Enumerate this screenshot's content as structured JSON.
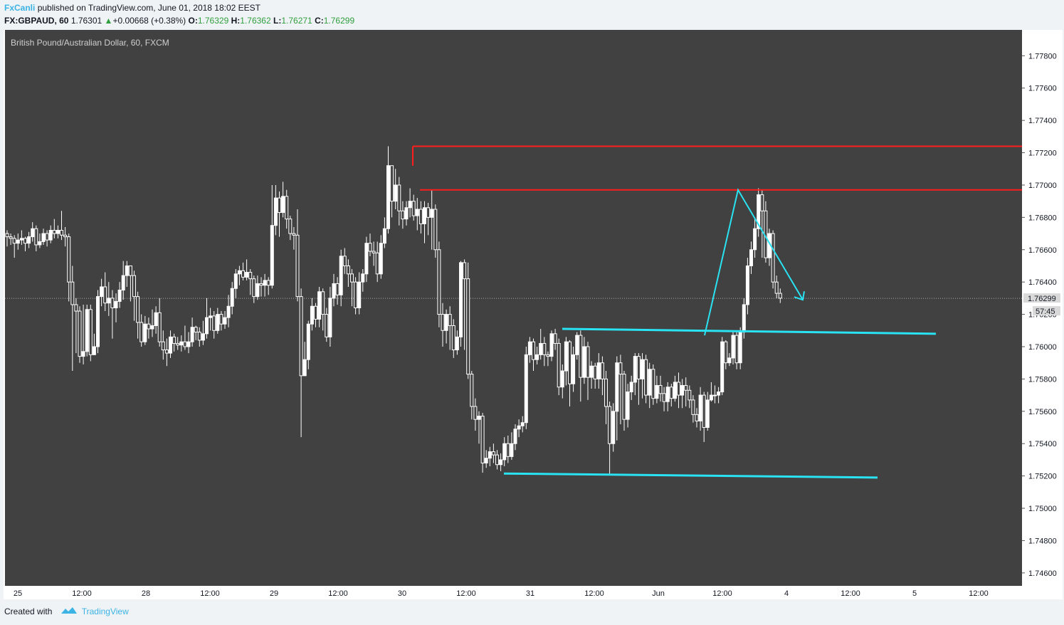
{
  "header": {
    "author": "FxCanli",
    "published": "published on TradingView.com, June 01, 2018 18:02 EEST",
    "symbol": "FX:GBPAUD, 60",
    "last": "1.76301",
    "change_arrow": "▲",
    "change": "+0.00668 (+0.38%)",
    "o_label": "O:",
    "o": "1.76329",
    "h_label": "H:",
    "h": "1.76362",
    "l_label": "L:",
    "l": "1.76271",
    "c_label": "C:",
    "c": "1.76299"
  },
  "footer": {
    "created_with": "Created with",
    "brand": "TradingView"
  },
  "colors": {
    "plot_bg": "#414141",
    "candle": "#ffffff",
    "resistance": "#ff1e1e",
    "trendline": "#29e2f2",
    "price_tag_bg": "#d9d9d9"
  },
  "chart_data": {
    "type": "candlestick",
    "title": "British Pound/Australian Dollar, 60, FXCM",
    "y_range": [
      1.7452,
      1.7796
    ],
    "y_ticks": [
      "1.77800",
      "1.77600",
      "1.77400",
      "1.77200",
      "1.77000",
      "1.76800",
      "1.76600",
      "1.76400",
      "1.76200",
      "1.76000",
      "1.75800",
      "1.75600",
      "1.75400",
      "1.75200",
      "1.75000",
      "1.74800",
      "1.74600"
    ],
    "x_labels": [
      "25",
      "12:00",
      "28",
      "12:00",
      "29",
      "12:00",
      "30",
      "12:00",
      "31",
      "12:00",
      "Jun",
      "12:00",
      "4",
      "12:00",
      "5",
      "12:00"
    ],
    "last_price": "1.76299",
    "countdown": "57:45",
    "candles_bar_span": [
      0,
      234
    ],
    "candles": [
      [
        1.767,
        1.7668,
        1.7672,
        1.7662
      ],
      [
        1.7668,
        1.7667,
        1.767,
        1.7663
      ],
      [
        1.7667,
        1.7664,
        1.7669,
        1.7655
      ],
      [
        1.7664,
        1.7666,
        1.767,
        1.766
      ],
      [
        1.7666,
        1.7667,
        1.7672,
        1.7663
      ],
      [
        1.7667,
        1.7664,
        1.7668,
        1.7659
      ],
      [
        1.7664,
        1.7668,
        1.7671,
        1.7661
      ],
      [
        1.7668,
        1.7673,
        1.7677,
        1.7665
      ],
      [
        1.7673,
        1.7663,
        1.7675,
        1.7659
      ],
      [
        1.7663,
        1.7665,
        1.767,
        1.7661
      ],
      [
        1.7665,
        1.767,
        1.7673,
        1.7663
      ],
      [
        1.767,
        1.7666,
        1.7672,
        1.7662
      ],
      [
        1.7666,
        1.7672,
        1.7675,
        1.7664
      ],
      [
        1.7672,
        1.767,
        1.7679,
        1.7667
      ],
      [
        1.767,
        1.7672,
        1.7675,
        1.7667
      ],
      [
        1.7672,
        1.7669,
        1.7684,
        1.7666
      ],
      [
        1.7669,
        1.7668,
        1.7674,
        1.7662
      ],
      [
        1.7668,
        1.764,
        1.767,
        1.7628
      ],
      [
        1.764,
        1.7626,
        1.765,
        1.7585
      ],
      [
        1.7626,
        1.7622,
        1.763,
        1.7596
      ],
      [
        1.7622,
        1.7594,
        1.7625,
        1.759
      ],
      [
        1.7594,
        1.7597,
        1.7626,
        1.7589
      ],
      [
        1.7597,
        1.7623,
        1.7626,
        1.7594
      ],
      [
        1.7623,
        1.7595,
        1.7626,
        1.7591
      ],
      [
        1.7595,
        1.76,
        1.7608,
        1.7595
      ],
      [
        1.76,
        1.7631,
        1.7635,
        1.7596
      ],
      [
        1.7631,
        1.7637,
        1.7642,
        1.7625
      ],
      [
        1.7637,
        1.7627,
        1.7646,
        1.7622
      ],
      [
        1.7627,
        1.763,
        1.764,
        1.7619
      ],
      [
        1.763,
        1.7624,
        1.7635,
        1.7605
      ],
      [
        1.7624,
        1.7628,
        1.7633,
        1.7615
      ],
      [
        1.7628,
        1.7635,
        1.764,
        1.7624
      ],
      [
        1.7635,
        1.7644,
        1.7653,
        1.7629
      ],
      [
        1.7644,
        1.765,
        1.7653,
        1.7637
      ],
      [
        1.765,
        1.7644,
        1.765,
        1.7628
      ],
      [
        1.7644,
        1.7631,
        1.7647,
        1.7616
      ],
      [
        1.7631,
        1.7615,
        1.7634,
        1.7605
      ],
      [
        1.7615,
        1.7603,
        1.762,
        1.76
      ],
      [
        1.7603,
        1.7614,
        1.7619,
        1.7601
      ],
      [
        1.7614,
        1.7611,
        1.7618,
        1.7605
      ],
      [
        1.7611,
        1.7613,
        1.7623,
        1.7606
      ],
      [
        1.7613,
        1.7621,
        1.7625,
        1.7608
      ],
      [
        1.7621,
        1.7603,
        1.763,
        1.76
      ],
      [
        1.7603,
        1.7598,
        1.761,
        1.7592
      ],
      [
        1.7598,
        1.7596,
        1.7605,
        1.7588
      ],
      [
        1.7596,
        1.7606,
        1.761,
        1.7593
      ],
      [
        1.7606,
        1.7602,
        1.7608,
        1.7597
      ],
      [
        1.7602,
        1.7601,
        1.7606,
        1.7598
      ],
      [
        1.7601,
        1.7603,
        1.7607,
        1.7597
      ],
      [
        1.7603,
        1.76,
        1.7613,
        1.7598
      ],
      [
        1.76,
        1.7603,
        1.7609,
        1.7596
      ],
      [
        1.7603,
        1.7612,
        1.7618,
        1.76
      ],
      [
        1.7612,
        1.7609,
        1.7613,
        1.7604
      ],
      [
        1.7609,
        1.7604,
        1.7612,
        1.76
      ],
      [
        1.7604,
        1.7608,
        1.7616,
        1.7601
      ],
      [
        1.7608,
        1.7618,
        1.763,
        1.7605
      ],
      [
        1.7618,
        1.7619,
        1.7624,
        1.761
      ],
      [
        1.7619,
        1.761,
        1.7622,
        1.7605
      ],
      [
        1.761,
        1.762,
        1.7624,
        1.7608
      ],
      [
        1.762,
        1.7614,
        1.7622,
        1.761
      ],
      [
        1.7614,
        1.7618,
        1.7622,
        1.7611
      ],
      [
        1.7618,
        1.7625,
        1.7632,
        1.7612
      ],
      [
        1.7625,
        1.7636,
        1.764,
        1.762
      ],
      [
        1.7636,
        1.7645,
        1.7648,
        1.763
      ],
      [
        1.7645,
        1.7647,
        1.765,
        1.7638
      ],
      [
        1.7647,
        1.7643,
        1.7652,
        1.7641
      ],
      [
        1.7643,
        1.7646,
        1.7654,
        1.7641
      ],
      [
        1.7646,
        1.7642,
        1.7648,
        1.7632
      ],
      [
        1.7642,
        1.7631,
        1.7644,
        1.7627
      ],
      [
        1.7631,
        1.7639,
        1.7644,
        1.7629
      ],
      [
        1.7639,
        1.7638,
        1.7643,
        1.7631
      ],
      [
        1.7638,
        1.7641,
        1.7645,
        1.7631
      ],
      [
        1.7641,
        1.7638,
        1.7643,
        1.7632
      ],
      [
        1.7638,
        1.7675,
        1.77,
        1.7636
      ],
      [
        1.7675,
        1.7692,
        1.77,
        1.7669
      ],
      [
        1.7692,
        1.7683,
        1.7696,
        1.7668
      ],
      [
        1.7683,
        1.7693,
        1.7702,
        1.768
      ],
      [
        1.7693,
        1.7679,
        1.7697,
        1.7673
      ],
      [
        1.7679,
        1.767,
        1.7681,
        1.7666
      ],
      [
        1.767,
        1.7669,
        1.7674,
        1.766
      ],
      [
        1.7669,
        1.7631,
        1.7685,
        1.7628
      ],
      [
        1.7631,
        1.7582,
        1.7636,
        1.7544
      ],
      [
        1.7582,
        1.7592,
        1.7603,
        1.7582
      ],
      [
        1.7592,
        1.7614,
        1.7616,
        1.7586
      ],
      [
        1.7614,
        1.7625,
        1.763,
        1.761
      ],
      [
        1.7625,
        1.7617,
        1.7627,
        1.7612
      ],
      [
        1.7617,
        1.7634,
        1.7637,
        1.7612
      ],
      [
        1.7634,
        1.762,
        1.7636,
        1.761
      ],
      [
        1.762,
        1.7606,
        1.7624,
        1.7603
      ],
      [
        1.7606,
        1.763,
        1.7637,
        1.76
      ],
      [
        1.763,
        1.7639,
        1.7645,
        1.7625
      ],
      [
        1.7639,
        1.7632,
        1.7643,
        1.7626
      ],
      [
        1.7632,
        1.7656,
        1.766,
        1.7625
      ],
      [
        1.7656,
        1.765,
        1.7661,
        1.7645
      ],
      [
        1.765,
        1.7645,
        1.7654,
        1.7637
      ],
      [
        1.7645,
        1.764,
        1.7648,
        1.7625
      ],
      [
        1.764,
        1.7624,
        1.7643,
        1.762
      ],
      [
        1.7624,
        1.764,
        1.7646,
        1.762
      ],
      [
        1.764,
        1.7645,
        1.7648,
        1.7634
      ],
      [
        1.7645,
        1.7664,
        1.7668,
        1.764
      ],
      [
        1.7664,
        1.7659,
        1.767,
        1.7656
      ],
      [
        1.7659,
        1.7658,
        1.7665,
        1.765
      ],
      [
        1.7658,
        1.7645,
        1.7665,
        1.764
      ],
      [
        1.7645,
        1.7664,
        1.7669,
        1.7642
      ],
      [
        1.7664,
        1.7673,
        1.768,
        1.7661
      ],
      [
        1.7673,
        1.7712,
        1.7724,
        1.767
      ],
      [
        1.7712,
        1.769,
        1.7712,
        1.768
      ],
      [
        1.769,
        1.77,
        1.771,
        1.7685
      ],
      [
        1.77,
        1.7684,
        1.7705,
        1.7675
      ],
      [
        1.7684,
        1.7679,
        1.769,
        1.7673
      ],
      [
        1.7679,
        1.7686,
        1.769,
        1.7675
      ],
      [
        1.7686,
        1.769,
        1.7698,
        1.768
      ],
      [
        1.769,
        1.7681,
        1.7694,
        1.7678
      ],
      [
        1.7681,
        1.7685,
        1.7692,
        1.7672
      ],
      [
        1.7685,
        1.7676,
        1.769,
        1.767
      ],
      [
        1.7676,
        1.7686,
        1.769,
        1.7664
      ],
      [
        1.7686,
        1.768,
        1.7689,
        1.7669
      ],
      [
        1.768,
        1.7685,
        1.7697,
        1.766
      ],
      [
        1.7685,
        1.766,
        1.7688,
        1.7655
      ],
      [
        1.766,
        1.762,
        1.7665,
        1.7612
      ],
      [
        1.762,
        1.761,
        1.7627,
        1.76
      ],
      [
        1.761,
        1.762,
        1.7623,
        1.7602
      ],
      [
        1.762,
        1.7613,
        1.7625,
        1.7598
      ],
      [
        1.7613,
        1.7598,
        1.7617,
        1.7593
      ],
      [
        1.7598,
        1.7606,
        1.761,
        1.7595
      ],
      [
        1.7606,
        1.7652,
        1.7653,
        1.76
      ],
      [
        1.7652,
        1.7642,
        1.7654,
        1.7598
      ],
      [
        1.7642,
        1.7583,
        1.7652,
        1.758
      ],
      [
        1.7583,
        1.7563,
        1.7585,
        1.7555
      ],
      [
        1.7563,
        1.7555,
        1.7568,
        1.7548
      ],
      [
        1.7555,
        1.7557,
        1.756,
        1.754
      ],
      [
        1.7557,
        1.7528,
        1.7559,
        1.7522
      ],
      [
        1.7528,
        1.7531,
        1.7536,
        1.7525
      ],
      [
        1.7531,
        1.7535,
        1.7538,
        1.7526
      ],
      [
        1.7535,
        1.7533,
        1.754,
        1.7528
      ],
      [
        1.7533,
        1.7527,
        1.7536,
        1.7524
      ],
      [
        1.7527,
        1.753,
        1.7534,
        1.7523
      ],
      [
        1.753,
        1.754,
        1.7544,
        1.7526
      ],
      [
        1.754,
        1.7532,
        1.7545,
        1.7528
      ],
      [
        1.7532,
        1.754,
        1.7547,
        1.753
      ],
      [
        1.754,
        1.7549,
        1.7552,
        1.7536
      ],
      [
        1.7549,
        1.7551,
        1.7555,
        1.7544
      ],
      [
        1.7551,
        1.7553,
        1.7557,
        1.7547
      ],
      [
        1.7553,
        1.7595,
        1.76,
        1.7549
      ],
      [
        1.7595,
        1.7603,
        1.7606,
        1.759
      ],
      [
        1.7603,
        1.7592,
        1.7605,
        1.7585
      ],
      [
        1.7592,
        1.7595,
        1.76,
        1.7589
      ],
      [
        1.7595,
        1.7602,
        1.7611,
        1.7592
      ],
      [
        1.7602,
        1.7595,
        1.7606,
        1.7588
      ],
      [
        1.7595,
        1.7594,
        1.7597,
        1.7588
      ],
      [
        1.7594,
        1.7608,
        1.761,
        1.7591
      ],
      [
        1.7608,
        1.7602,
        1.7611,
        1.7598
      ],
      [
        1.7602,
        1.7575,
        1.7605,
        1.757
      ],
      [
        1.7575,
        1.7585,
        1.7589,
        1.7568
      ],
      [
        1.7585,
        1.7603,
        1.7606,
        1.7576
      ],
      [
        1.7603,
        1.7577,
        1.7604,
        1.7563
      ],
      [
        1.7577,
        1.7595,
        1.76,
        1.7572
      ],
      [
        1.7595,
        1.7607,
        1.7609,
        1.7592
      ],
      [
        1.7607,
        1.7581,
        1.761,
        1.7566
      ],
      [
        1.7581,
        1.76,
        1.7606,
        1.7577
      ],
      [
        1.76,
        1.7581,
        1.7603,
        1.7567
      ],
      [
        1.7581,
        1.7588,
        1.7591,
        1.7574
      ],
      [
        1.7588,
        1.758,
        1.759,
        1.7574
      ],
      [
        1.758,
        1.759,
        1.7596,
        1.7574
      ],
      [
        1.759,
        1.758,
        1.7594,
        1.757
      ],
      [
        1.758,
        1.7563,
        1.7585,
        1.7552
      ],
      [
        1.7563,
        1.754,
        1.7566,
        1.7521
      ],
      [
        1.754,
        1.756,
        1.7565,
        1.7535
      ],
      [
        1.756,
        1.759,
        1.7594,
        1.7542
      ],
      [
        1.759,
        1.7583,
        1.7595,
        1.7552
      ],
      [
        1.7583,
        1.7555,
        1.7585,
        1.7548
      ],
      [
        1.7555,
        1.7572,
        1.7577,
        1.755
      ],
      [
        1.7572,
        1.7578,
        1.7582,
        1.7567
      ],
      [
        1.7578,
        1.7594,
        1.7596,
        1.757
      ],
      [
        1.7594,
        1.758,
        1.7596,
        1.7564
      ],
      [
        1.758,
        1.7592,
        1.7596,
        1.7568
      ],
      [
        1.7592,
        1.757,
        1.7595,
        1.7565
      ],
      [
        1.757,
        1.7586,
        1.759,
        1.7562
      ],
      [
        1.7586,
        1.7568,
        1.7589,
        1.7564
      ],
      [
        1.7568,
        1.7576,
        1.7582,
        1.7565
      ],
      [
        1.7576,
        1.7571,
        1.7582,
        1.7566
      ],
      [
        1.7571,
        1.7566,
        1.7575,
        1.756
      ],
      [
        1.7566,
        1.7575,
        1.7578,
        1.756
      ],
      [
        1.7575,
        1.7568,
        1.7577,
        1.7563
      ],
      [
        1.7568,
        1.7578,
        1.7582,
        1.7566
      ],
      [
        1.7578,
        1.757,
        1.7584,
        1.7562
      ],
      [
        1.757,
        1.7576,
        1.758,
        1.7562
      ],
      [
        1.7576,
        1.7573,
        1.7581,
        1.7563
      ],
      [
        1.7573,
        1.7567,
        1.7576,
        1.7562
      ],
      [
        1.7567,
        1.7558,
        1.757,
        1.7553
      ],
      [
        1.7558,
        1.7554,
        1.7562,
        1.755
      ],
      [
        1.7554,
        1.757,
        1.7575,
        1.7548
      ],
      [
        1.757,
        1.755,
        1.7572,
        1.7541
      ],
      [
        1.755,
        1.7567,
        1.7572,
        1.7548
      ],
      [
        1.7567,
        1.757,
        1.7578,
        1.7566
      ],
      [
        1.757,
        1.757,
        1.7576,
        1.7565
      ],
      [
        1.757,
        1.7572,
        1.7575,
        1.7565
      ],
      [
        1.7572,
        1.7603,
        1.7606,
        1.757
      ],
      [
        1.7603,
        1.759,
        1.7604,
        1.7586
      ],
      [
        1.759,
        1.7593,
        1.7596,
        1.7588
      ],
      [
        1.7593,
        1.7607,
        1.761,
        1.7589
      ],
      [
        1.7607,
        1.759,
        1.7609,
        1.7586
      ],
      [
        1.759,
        1.7609,
        1.7612,
        1.7586
      ],
      [
        1.7609,
        1.7626,
        1.763,
        1.7605
      ],
      [
        1.7626,
        1.765,
        1.7655,
        1.762
      ],
      [
        1.765,
        1.766,
        1.7665,
        1.7645
      ],
      [
        1.766,
        1.7673,
        1.768,
        1.7655
      ],
      [
        1.7673,
        1.7694,
        1.7698,
        1.7668
      ],
      [
        1.7694,
        1.7684,
        1.7697,
        1.7655
      ],
      [
        1.7684,
        1.7655,
        1.769,
        1.7652
      ],
      [
        1.7655,
        1.767,
        1.7673,
        1.765
      ],
      [
        1.767,
        1.764,
        1.7672,
        1.7636
      ],
      [
        1.764,
        1.7633,
        1.7644,
        1.763
      ],
      [
        1.7633,
        1.763,
        1.7636,
        1.7627
      ]
    ],
    "annotations": {
      "resistance_lines": [
        {
          "label": "red-upper",
          "points": [
            [
              0,
              1.7724
            ],
            [
              1.0,
              1.7724
            ]
          ]
        },
        {
          "label": "red-lower",
          "points": [
            [
              0,
              1.7697
            ],
            [
              1.0,
              1.7697
            ]
          ]
        }
      ],
      "trendlines": [
        {
          "label": "upper-channel",
          "from": [
            1.7611
          ],
          "to": [
            1.7608
          ]
        },
        {
          "label": "lower-channel",
          "from": [
            1.7521
          ],
          "to": [
            1.7519
          ]
        }
      ],
      "projection_arrow": {
        "points": [
          1.7607,
          1.7697,
          1.7629
        ]
      }
    }
  }
}
